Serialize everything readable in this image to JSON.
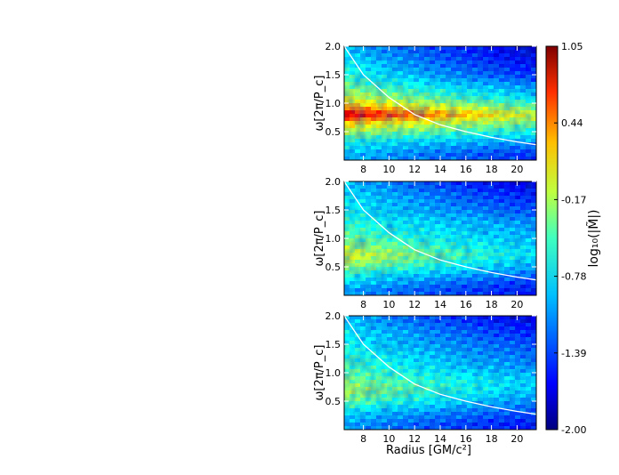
{
  "chart_data": [
    {
      "type": "heatmap",
      "panel": "top",
      "ylabel": "ω[2π/P_c]",
      "xlabel": "",
      "xlim": [
        6.5,
        21.5
      ],
      "ylim": [
        0.0,
        2.0
      ],
      "xticks": [
        8,
        10,
        12,
        14,
        16,
        18,
        20
      ],
      "yticks": [
        0.5,
        1.0,
        1.5,
        2.0
      ],
      "ytick_labels": [
        "0.5",
        "1.0",
        "1.5",
        "2.0"
      ],
      "intensity_profile": {
        "omega": [
          0.1,
          0.3,
          0.5,
          0.65,
          0.8,
          0.95,
          1.1,
          1.3,
          1.5,
          1.8,
          2.0
        ],
        "log10_inner": [
          -1.0,
          -0.8,
          -0.3,
          0.1,
          0.9,
          0.2,
          -0.2,
          -0.5,
          -0.7,
          -0.9,
          -1.0
        ],
        "log10_outer": [
          -1.5,
          -1.2,
          -0.8,
          -0.5,
          -0.2,
          -0.6,
          -0.9,
          -1.2,
          -1.5,
          -1.7,
          -1.8
        ]
      },
      "curve": {
        "name": "",
        "x": [
          6.5,
          8,
          10,
          12,
          14,
          16,
          18,
          20,
          21.5
        ],
        "y": [
          2.0,
          1.5,
          1.1,
          0.8,
          0.62,
          0.5,
          0.4,
          0.32,
          0.27
        ]
      }
    },
    {
      "type": "heatmap",
      "panel": "middle",
      "ylabel": "ω[2π/P_c]",
      "xlabel": "",
      "xlim": [
        6.5,
        21.5
      ],
      "ylim": [
        0.0,
        2.0
      ],
      "xticks": [
        8,
        10,
        12,
        14,
        16,
        18,
        20
      ],
      "yticks": [
        0.5,
        1.0,
        1.5,
        2.0
      ],
      "ytick_labels": [
        "0.5",
        "1.0",
        "1.5",
        "2.0"
      ],
      "intensity_profile": {
        "omega": [
          0.1,
          0.3,
          0.5,
          0.7,
          0.9,
          1.1,
          1.3,
          1.5,
          1.8,
          2.0
        ],
        "log10_inner": [
          -1.1,
          -0.8,
          -0.4,
          -0.1,
          -0.4,
          -0.6,
          -0.7,
          -0.8,
          -0.9,
          -1.0
        ],
        "log10_outer": [
          -1.6,
          -1.4,
          -1.1,
          -0.9,
          -1.0,
          -1.1,
          -1.2,
          -1.4,
          -1.6,
          -1.8
        ]
      },
      "curve": {
        "name": "",
        "x": [
          6.5,
          8,
          10,
          12,
          14,
          16,
          18,
          20,
          21.5
        ],
        "y": [
          2.0,
          1.5,
          1.1,
          0.8,
          0.62,
          0.5,
          0.4,
          0.32,
          0.27
        ]
      }
    },
    {
      "type": "heatmap",
      "panel": "bottom",
      "ylabel": "ω[2π/P_c]",
      "xlabel": "Radius [GM/c²]",
      "xlim": [
        6.5,
        21.5
      ],
      "ylim": [
        0.0,
        2.0
      ],
      "xticks": [
        8,
        10,
        12,
        14,
        16,
        18,
        20
      ],
      "yticks": [
        0.5,
        1.0,
        1.5,
        2.0
      ],
      "ytick_labels": [
        "0.5",
        "1.0",
        "1.5",
        "2.0"
      ],
      "intensity_profile": {
        "omega": [
          0.1,
          0.3,
          0.5,
          0.7,
          0.9,
          1.1,
          1.3,
          1.5,
          1.8,
          2.0
        ],
        "log10_inner": [
          -1.1,
          -0.9,
          -0.5,
          -0.3,
          -0.5,
          -0.6,
          -0.7,
          -0.8,
          -0.9,
          -1.0
        ],
        "log10_outer": [
          -1.6,
          -1.4,
          -1.2,
          -1.0,
          -1.0,
          -1.2,
          -1.3,
          -1.4,
          -1.6,
          -1.8
        ]
      },
      "curve": {
        "name": "",
        "x": [
          6.5,
          8,
          10,
          12,
          14,
          16,
          18,
          20,
          21.5
        ],
        "y": [
          2.0,
          1.5,
          1.1,
          0.8,
          0.62,
          0.5,
          0.4,
          0.32,
          0.27
        ]
      }
    }
  ],
  "colorbar": {
    "label": "log₁₀(|M̃|)",
    "range": [
      -2.0,
      1.05
    ],
    "ticks": [
      "1.05",
      "0.44",
      "-0.17",
      "-0.78",
      "-1.39",
      "-2.00"
    ],
    "tick_values": [
      1.05,
      0.44,
      -0.17,
      -0.78,
      -1.39,
      -2.0
    ],
    "colormap": [
      "#00007f",
      "#0000ff",
      "#007fff",
      "#00ffff",
      "#7fff7f",
      "#ffff00",
      "#ff7f00",
      "#ff0000",
      "#7f0000"
    ]
  },
  "colors": {
    "curve": "#ffffff",
    "axes": "#000000"
  }
}
